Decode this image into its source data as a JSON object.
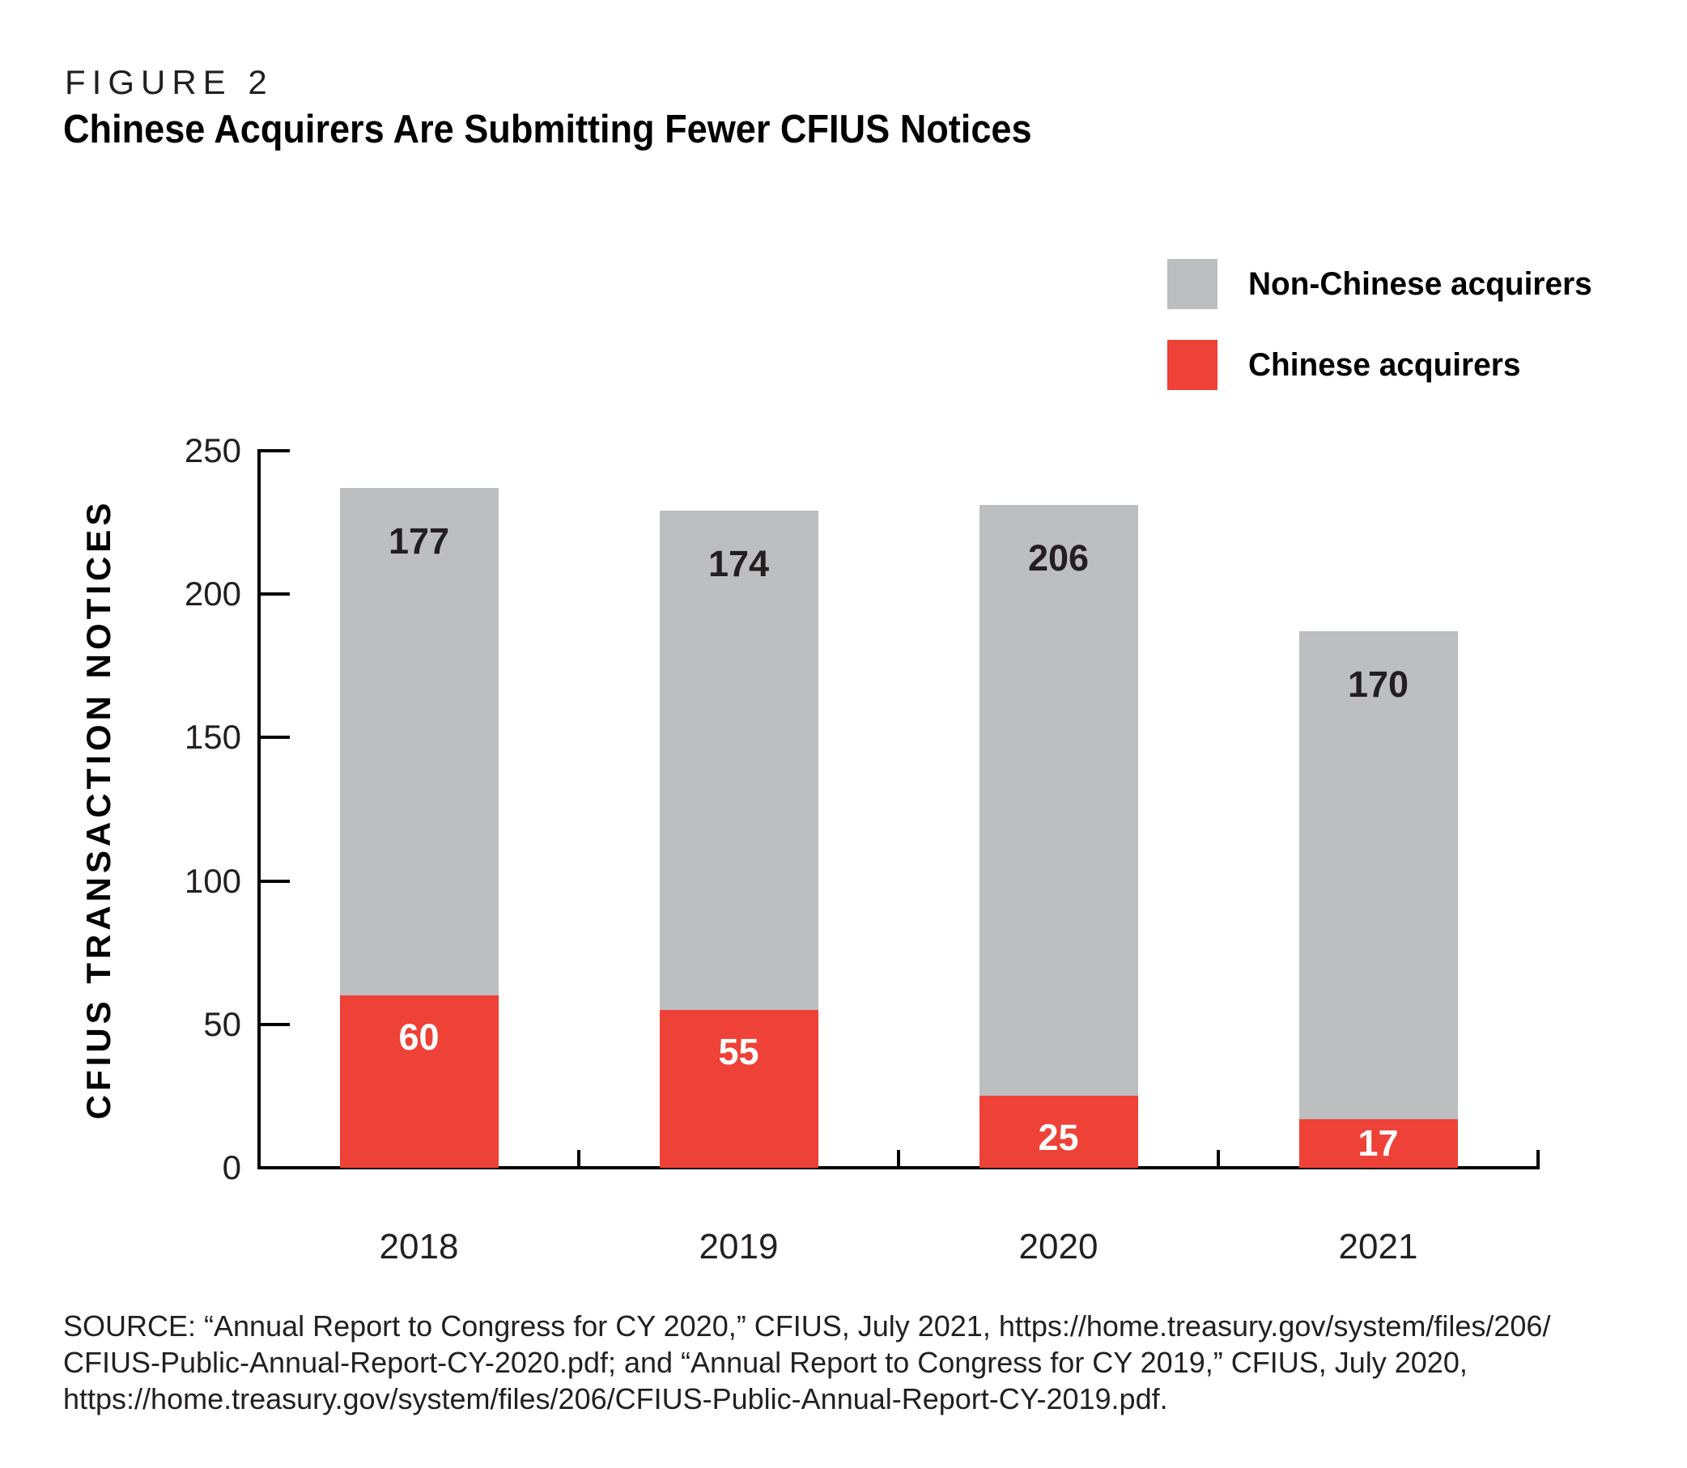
{
  "figure": {
    "label": "FIGURE 2",
    "title": "Chinese Acquirers Are Submitting Fewer CFIUS Notices"
  },
  "legend": [
    {
      "label": "Non-Chinese acquirers",
      "color": "#bdbec0"
    },
    {
      "label": "Chinese acquirers",
      "color": "#ee4137"
    }
  ],
  "chart_data": {
    "type": "bar",
    "stacked": true,
    "categories": [
      "2018",
      "2019",
      "2020",
      "2021"
    ],
    "series": [
      {
        "name": "Chinese acquirers",
        "color": "#ee4137",
        "label_color": "#ffffff",
        "values": [
          60,
          55,
          25,
          17
        ]
      },
      {
        "name": "Non-Chinese acquirers",
        "color": "#bdbec0",
        "label_color": "#231f20",
        "values": [
          177,
          174,
          206,
          170
        ]
      }
    ],
    "title": "Chinese Acquirers Are Submitting Fewer CFIUS Notices",
    "xlabel": "",
    "ylabel": "CFIUS TRANSACTION NOTICES",
    "ylim": [
      0,
      250
    ],
    "y_ticks": [
      0,
      50,
      100,
      150,
      200,
      250
    ],
    "grid": false,
    "legend_position": "top-right"
  },
  "source": {
    "lines": [
      "SOURCE: “Annual Report to Congress for CY 2020,” CFIUS, July 2021, https://home.treasury.gov/system/files/206/",
      "CFIUS-Public-Annual-Report-CY-2020.pdf; and “Annual Report to Congress for CY 2019,” CFIUS, July 2020,",
      "https://home.treasury.gov/system/files/206/CFIUS-Public-Annual-Report-CY-2019.pdf."
    ]
  },
  "colors": {
    "chinese": "#ee4137",
    "non_chinese": "#bdbec0",
    "text": "#231f20",
    "axis": "#000000",
    "background": "#ffffff"
  }
}
